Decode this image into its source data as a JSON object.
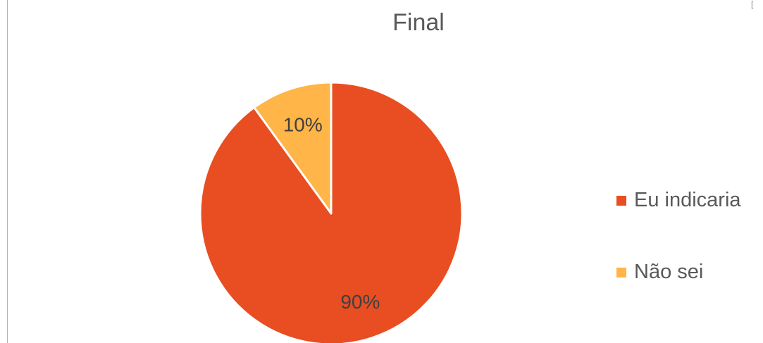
{
  "chart_data": {
    "type": "pie",
    "title": "Final",
    "categories": [
      "Eu indicaria",
      "Não sei"
    ],
    "values": [
      90,
      10
    ],
    "labels": [
      "90%",
      "10%"
    ],
    "colors": [
      "#E84E22",
      "#FFB547"
    ],
    "legend_position": "right"
  },
  "corner_mark": "["
}
